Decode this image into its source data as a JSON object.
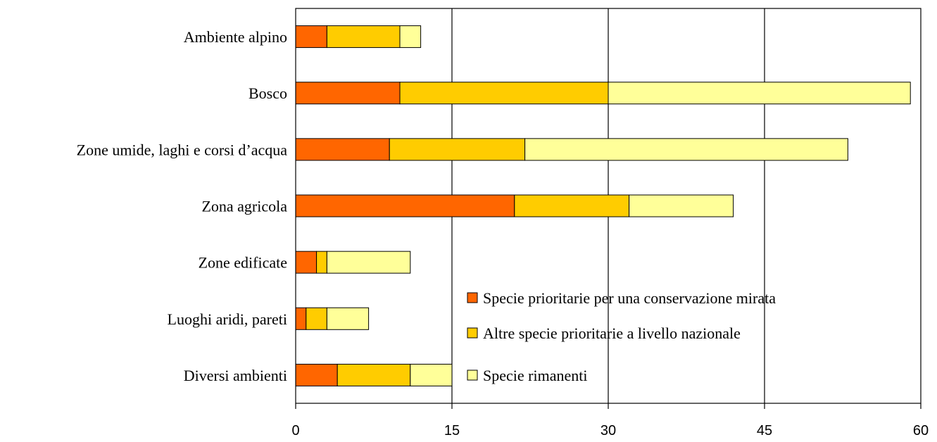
{
  "chart_data": {
    "type": "bar",
    "orientation": "horizontal",
    "stacked": true,
    "categories": [
      "Ambiente alpino",
      "Bosco",
      "Zone umide, laghi e corsi d’acqua",
      "Zona agricola",
      "Zone edificate",
      "Luoghi aridi, pareti",
      "Diversi ambienti"
    ],
    "series": [
      {
        "name": "Specie prioritarie per una conservazione mirata",
        "color": "#FF6600",
        "values": [
          3,
          10,
          9,
          21,
          2,
          1,
          4
        ]
      },
      {
        "name": "Altre specie prioritarie a livello nazionale",
        "color": "#FFCC00",
        "values": [
          7,
          20,
          13,
          11,
          1,
          2,
          7
        ]
      },
      {
        "name": "Specie rimanenti",
        "color": "#FFFF99",
        "values": [
          2,
          29,
          31,
          10,
          8,
          4,
          4
        ]
      }
    ],
    "xlim": [
      0,
      60
    ],
    "xticks": [
      "0",
      "15",
      "30",
      "45",
      "60"
    ],
    "grid": true,
    "legend_position": "bottom-right inside plot"
  }
}
